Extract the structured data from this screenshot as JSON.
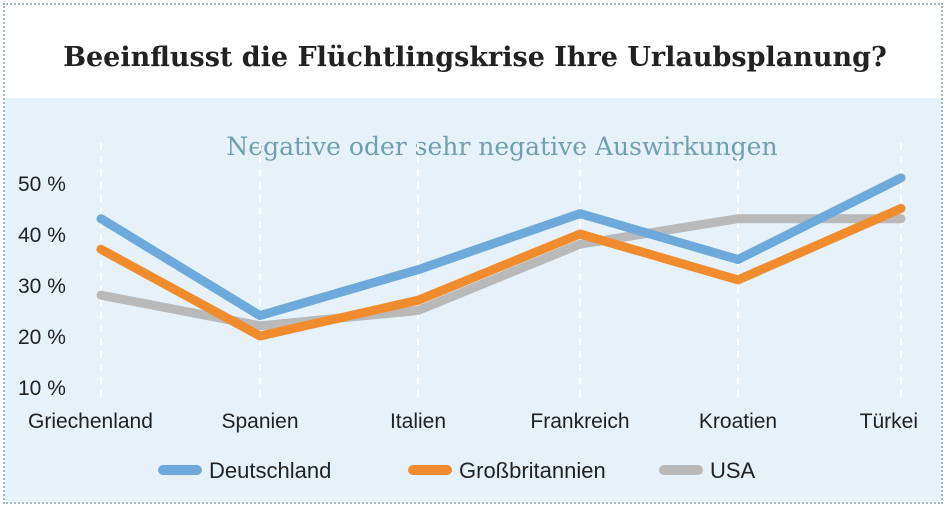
{
  "title": "Beeinflusst die Flüchtlingskrise Ihre Urlaubsplanung?",
  "colors": {
    "Deutschland": "#6ea9dc",
    "Großbritannien": "#f08c2e",
    "USA": "#b9b9b9",
    "background": "#e6f1fa",
    "subtitle": "#6f9fb0"
  },
  "chart_data": {
    "type": "line",
    "title": "Negative oder sehr negative Auswirkungen",
    "categories": [
      "Griechenland",
      "Spanien",
      "Italien",
      "Frankreich",
      "Kroatien",
      "Türkei"
    ],
    "ylim": [
      10,
      50
    ],
    "yticks": [
      "50 %",
      "40 %",
      "30 %",
      "20 %",
      "10 %"
    ],
    "ytick_values": [
      50,
      40,
      30,
      20,
      10
    ],
    "grid": "vertical dashed",
    "legend_position": "bottom",
    "series": [
      {
        "name": "Deutschland",
        "values": [
          43,
          24,
          33,
          44,
          35,
          51
        ]
      },
      {
        "name": "Großbritannien",
        "values": [
          37,
          20,
          27,
          40,
          31,
          45
        ]
      },
      {
        "name": "USA",
        "values": [
          28,
          22,
          25,
          38,
          43,
          43
        ]
      }
    ]
  }
}
